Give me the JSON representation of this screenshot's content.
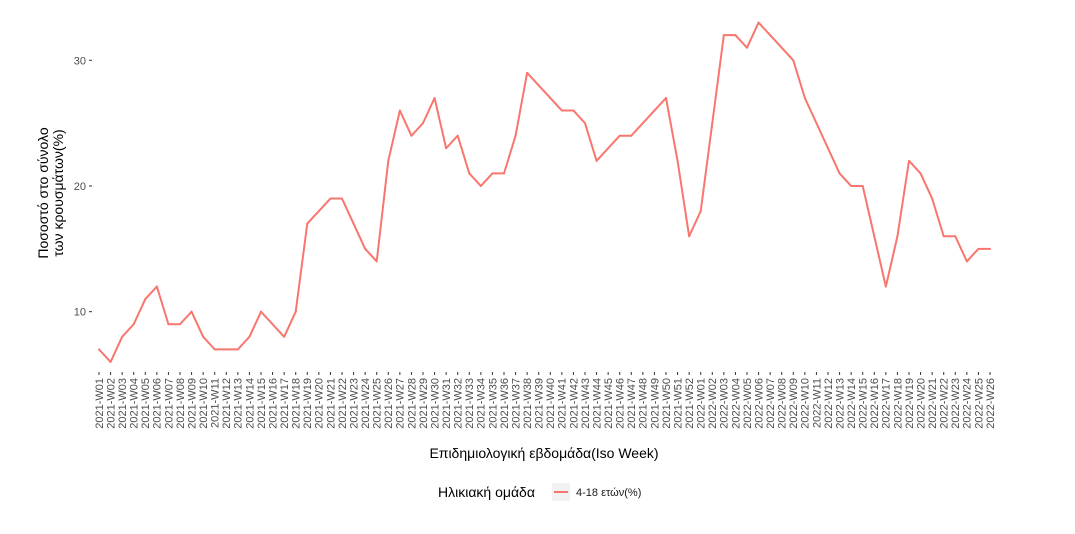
{
  "chart_data": {
    "type": "line",
    "xlabel": "Επιδημιολογική εβδομάδα(Iso Week)",
    "ylabel_lines": [
      "Ποσοστό στο σύνολο",
      "των κρουσμάτων(%)"
    ],
    "ylim": [
      5.2,
      34
    ],
    "yticks": [
      10,
      20,
      30
    ],
    "grid": false,
    "legend_position": "bottom",
    "legend_title": "Ηλικιακή ομάδα",
    "series_color": "#F8766D",
    "categories": [
      "2021-W01",
      "2021-W02",
      "2021-W03",
      "2021-W04",
      "2021-W05",
      "2021-W06",
      "2021-W07",
      "2021-W08",
      "2021-W09",
      "2021-W10",
      "2021-W11",
      "2021-W12",
      "2021-W13",
      "2021-W14",
      "2021-W15",
      "2021-W16",
      "2021-W17",
      "2021-W18",
      "2021-W19",
      "2021-W20",
      "2021-W21",
      "2021-W22",
      "2021-W23",
      "2021-W24",
      "2021-W25",
      "2021-W26",
      "2021-W27",
      "2021-W28",
      "2021-W29",
      "2021-W30",
      "2021-W31",
      "2021-W32",
      "2021-W33",
      "2021-W34",
      "2021-W35",
      "2021-W36",
      "2021-W37",
      "2021-W38",
      "2021-W39",
      "2021-W40",
      "2021-W41",
      "2021-W42",
      "2021-W43",
      "2021-W44",
      "2021-W45",
      "2021-W46",
      "2021-W47",
      "2021-W48",
      "2021-W49",
      "2021-W50",
      "2021-W51",
      "2021-W52",
      "2022-W01",
      "2022-W02",
      "2022-W03",
      "2022-W04",
      "2022-W05",
      "2022-W06",
      "2022-W07",
      "2022-W08",
      "2022-W09",
      "2022-W10",
      "2022-W11",
      "2022-W12",
      "2022-W13",
      "2022-W14",
      "2022-W15",
      "2022-W16",
      "2022-W17",
      "2022-W18",
      "2022-W19",
      "2022-W20",
      "2022-W21",
      "2022-W22",
      "2022-W23",
      "2022-W24",
      "2022-W25",
      "2022-W26"
    ],
    "series": [
      {
        "name": "4-18 ετών(%)",
        "values": [
          7,
          6,
          8,
          9,
          11,
          12,
          9,
          9,
          10,
          8,
          7,
          7,
          7,
          8,
          10,
          9,
          8,
          10,
          17,
          18,
          19,
          19,
          17,
          15,
          14,
          22,
          26,
          24,
          25,
          27,
          23,
          24,
          21,
          20,
          21,
          21,
          24,
          29,
          28,
          27,
          26,
          26,
          25,
          22,
          23,
          24,
          24,
          25,
          26,
          27,
          22,
          16,
          18,
          25,
          32,
          32,
          31,
          33,
          32,
          31,
          30,
          27,
          25,
          23,
          21,
          20,
          20,
          16,
          12,
          16,
          22,
          21,
          19,
          16,
          16,
          14,
          15,
          15
        ]
      }
    ]
  }
}
